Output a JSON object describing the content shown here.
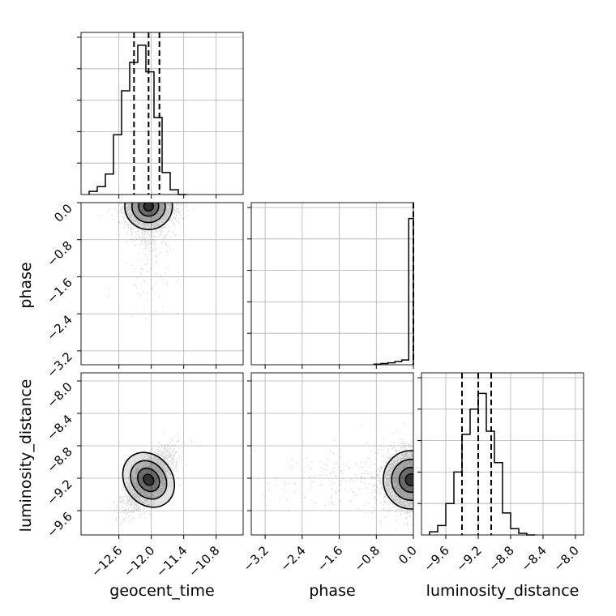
{
  "chart_data": {
    "type": "corner",
    "parameters": [
      "geocent_time",
      "phase",
      "luminosity_distance"
    ],
    "axes": {
      "geocent_time": {
        "range": [
          -13.3,
          -10.3
        ],
        "ticks": [
          -12.6,
          -12.0,
          -11.4,
          -10.8
        ],
        "tick_labels": [
          "−12.6",
          "−12.0",
          "−11.4",
          "−10.8"
        ]
      },
      "phase": {
        "range": [
          -3.5,
          0.0
        ],
        "ticks": [
          -3.2,
          -2.4,
          -1.6,
          -0.8,
          0.0
        ],
        "tick_labels": [
          "−3.2",
          "−2.4",
          "−1.6",
          "−0.8",
          "0.0"
        ]
      },
      "luminosity_distance": {
        "range": [
          -9.9,
          -7.9
        ],
        "ticks": [
          -9.6,
          -9.2,
          -8.8,
          -8.4,
          -8.0
        ],
        "tick_labels": [
          "−9.6",
          "−9.2",
          "−8.8",
          "−8.4",
          "−8.0"
        ]
      }
    },
    "histograms": {
      "geocent_time": {
        "bin_edges": [
          -13.15,
          -13.0,
          -12.85,
          -12.7,
          -12.55,
          -12.4,
          -12.25,
          -12.1,
          -11.95,
          -11.8,
          -11.65,
          -11.5,
          -11.35
        ],
        "counts": [
          0.02,
          0.05,
          0.13,
          0.38,
          0.66,
          0.84,
          0.95,
          0.78,
          0.49,
          0.14,
          0.03,
          0.0
        ],
        "quantiles": [
          -12.32,
          -12.05,
          -11.85
        ]
      },
      "phase": {
        "bin_edges": [
          -0.85,
          -0.7,
          -0.55,
          -0.4,
          -0.25,
          -0.1,
          0.0
        ],
        "counts": [
          0.004,
          0.008,
          0.012,
          0.02,
          0.03,
          0.93
        ],
        "quantiles": [
          0.0
        ]
      },
      "luminosity_distance": {
        "bin_edges": [
          -9.8,
          -9.7,
          -9.6,
          -9.5,
          -9.4,
          -9.3,
          -9.2,
          -9.1,
          -9.0,
          -8.9,
          -8.8,
          -8.7,
          -8.6,
          -8.5
        ],
        "counts": [
          0.02,
          0.06,
          0.2,
          0.4,
          0.64,
          0.8,
          0.9,
          0.66,
          0.46,
          0.14,
          0.04,
          0.01,
          0.0
        ],
        "quantiles": [
          -9.4,
          -9.2,
          -9.04
        ]
      }
    },
    "joint": [
      {
        "x": "geocent_time",
        "y": "phase",
        "mean": [
          -12.05,
          -0.08
        ],
        "sd": [
          0.22,
          0.25
        ]
      },
      {
        "x": "geocent_time",
        "y": "luminosity_distance",
        "mean": [
          -12.05,
          -9.22
        ],
        "sd": [
          0.22,
          0.18
        ],
        "corr": 0.7
      },
      {
        "x": "phase",
        "y": "luminosity_distance",
        "mean": [
          -0.05,
          -9.22
        ],
        "sd": [
          0.3,
          0.18
        ]
      }
    ],
    "grid": true,
    "quantile_line_style": "dashed"
  }
}
